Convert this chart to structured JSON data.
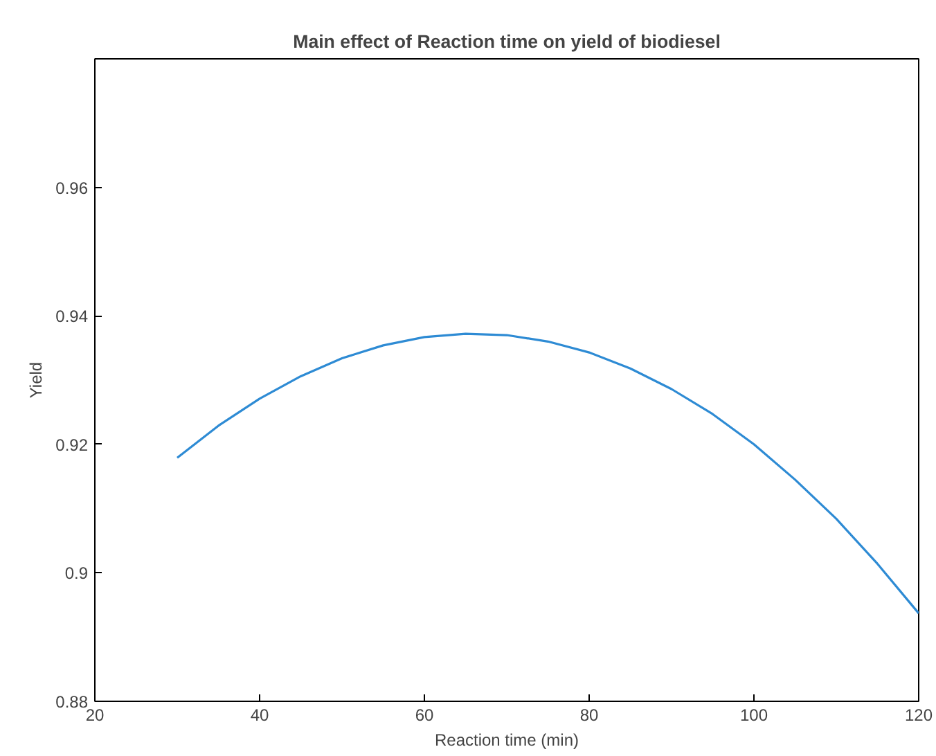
{
  "chart_data": {
    "type": "line",
    "title": "Main effect of Reaction time on yield of biodiesel",
    "xlabel": "Reaction time (min)",
    "ylabel": "Yield",
    "x": [
      30,
      35,
      40,
      45,
      50,
      55,
      60,
      65,
      70,
      75,
      80,
      85,
      90,
      95,
      100,
      105,
      110,
      115,
      120
    ],
    "series": [
      {
        "color": "#2e8bd4",
        "values": [
          0.9179,
          0.9229,
          0.9271,
          0.9306,
          0.9334,
          0.9354,
          0.9367,
          0.9372,
          0.937,
          0.936,
          0.9343,
          0.9318,
          0.9286,
          0.9247,
          0.92,
          0.9145,
          0.9084,
          0.9014,
          0.8937
        ]
      }
    ],
    "xlim": [
      20,
      120
    ],
    "xticks": [
      20,
      40,
      60,
      80,
      100,
      120
    ],
    "ylim": [
      0.88,
      0.98
    ],
    "yticks": [
      0.88,
      {
        "value": 0.9,
        "label": "0.9"
      },
      0.92,
      0.94,
      0.96
    ],
    "grid": false,
    "marker": "none",
    "line_style": "solid"
  }
}
